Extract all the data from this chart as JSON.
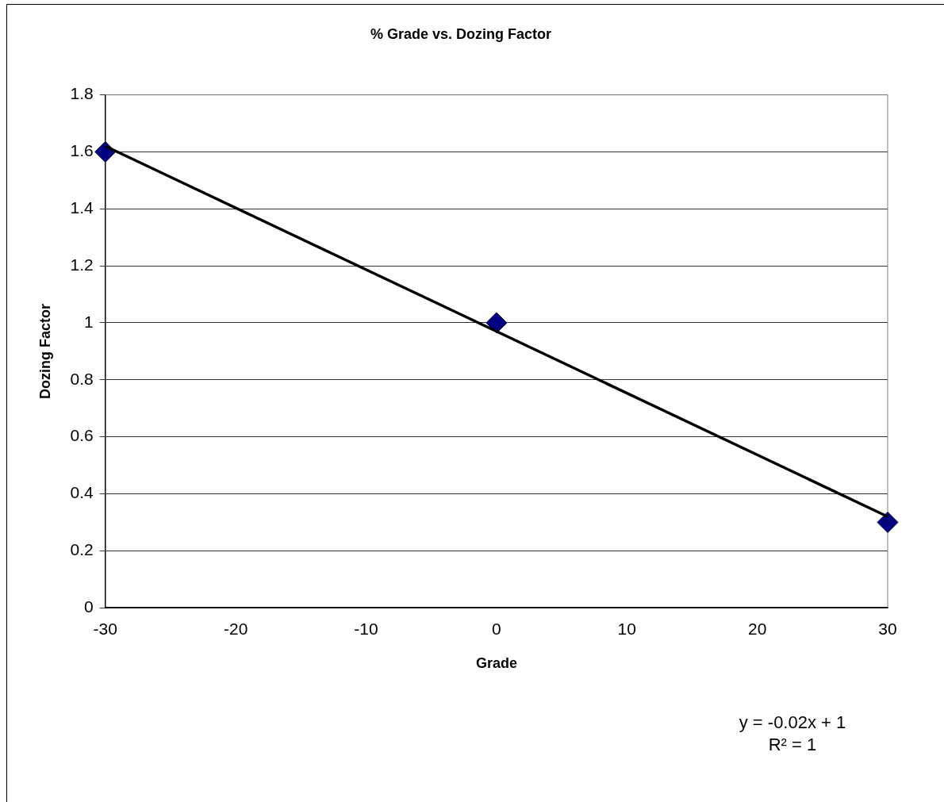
{
  "chart_data": {
    "type": "scatter",
    "title": "% Grade vs. Dozing Factor",
    "xlabel": "Grade",
    "ylabel": "Dozing Factor",
    "xlim": [
      -30,
      30
    ],
    "xticks": [
      -30,
      -20,
      -10,
      0,
      10,
      20,
      30
    ],
    "ylim": [
      0,
      1.8
    ],
    "yticks": [
      0,
      0.2,
      0.4,
      0.6,
      0.8,
      1,
      1.2,
      1.4,
      1.6,
      1.8
    ],
    "grid": "y",
    "legend": false,
    "series": [
      {
        "type": "scatter",
        "color": "#000080",
        "marker": "diamond",
        "x": [
          -30,
          0,
          30
        ],
        "values": [
          1.6,
          1.0,
          0.3
        ]
      },
      {
        "type": "line",
        "color": "#000000",
        "marker": "none",
        "x": [
          -30,
          30
        ],
        "values": [
          1.62,
          0.32
        ]
      }
    ],
    "annotations": [
      "y = -0.02x + 1",
      "R² = 1"
    ]
  }
}
